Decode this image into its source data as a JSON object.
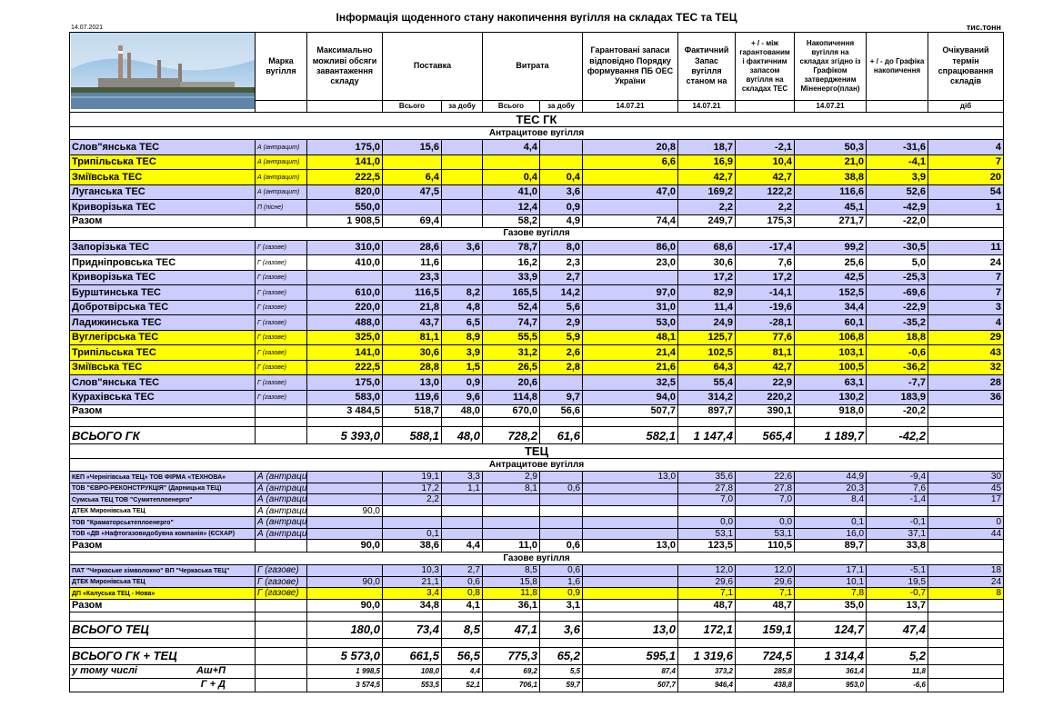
{
  "header": {
    "title": "Інформація щоденного стану накопичення вугілля на складах ТЕС та ТЕЦ",
    "date": "14.07.2021",
    "unit": "тис.тонн",
    "columns": [
      "Марка вугілля",
      "Максимально можливі обсяги завантаження складу",
      "Поставка",
      "Витрата",
      "Гарантовані запаси відповідно Порядку формування ПБ ОЕС України",
      "Фактичний Запас вугілля станом на",
      "+ / - між гарантованим і фактичним запасом вугілля на складах ТЕС",
      "Накопичення вугілля на складах згідно із Графіком затвердженим Міненерго(план)",
      "+ / - до Графіка накопичення",
      "Очікуваний термін спрацювання складів"
    ],
    "subheaders": [
      "Всього",
      "за добу",
      "Всього",
      "за добу",
      "14.07.21",
      "14.07.21",
      "14.07.21",
      "діб"
    ]
  },
  "table": {
    "sections": [
      {
        "title": "ТЕС ГК",
        "groups": [
          {
            "title": "Антрацитове вугілля",
            "rows": [
              {
                "name": "Слов\"янська ТЕС",
                "grade": "А (антрацит)",
                "fill": "#ccccff",
                "values": [
                  "175,0",
                  "15,6",
                  null,
                  "4,4",
                  null,
                  "20,8",
                  "18,7",
                  "-2,1",
                  "50,3",
                  "-31,6",
                  "4"
                ]
              },
              {
                "name": "Трипільська ТЕС",
                "grade": "А (антрацит)",
                "fill": "#ffff00",
                "values": [
                  "141,0",
                  null,
                  null,
                  null,
                  null,
                  "6,6",
                  "16,9",
                  "10,4",
                  "21,0",
                  "-4,1",
                  "7"
                ]
              },
              {
                "name": "Зміївська ТЕС",
                "grade": "А (антрацит)",
                "fill": "#ffff00",
                "values": [
                  "222,5",
                  "6,4",
                  null,
                  "0,4",
                  "0,4",
                  null,
                  "42,7",
                  "42,7",
                  "38,8",
                  "3,9",
                  "20"
                ]
              },
              {
                "name": "Луганська ТЕС",
                "grade": "А (антрацит)",
                "fill": "#ccccff",
                "values": [
                  "820,0",
                  "47,5",
                  null,
                  "41,0",
                  "3,6",
                  "47,0",
                  "169,2",
                  "122,2",
                  "116,6",
                  "52,6",
                  "54"
                ]
              },
              {
                "name": "Криворізька ТЕС",
                "grade": "П (пісне)",
                "fill": "#ccccff",
                "values": [
                  "550,0",
                  null,
                  null,
                  "12,4",
                  "0,9",
                  null,
                  "2,2",
                  "2,2",
                  "45,1",
                  "-42,9",
                  "1"
                ]
              }
            ],
            "total": {
              "name": "Разом",
              "values": [
                "1 908,5",
                "69,4",
                null,
                "58,2",
                "4,9",
                "74,4",
                "249,7",
                "175,3",
                "271,7",
                "-22,0",
                null
              ]
            }
          },
          {
            "title": "Газове вугілля",
            "rows": [
              {
                "name": "Запорізька ТЕС",
                "grade": "Г (газове)",
                "fill": "#ccccff",
                "values": [
                  "310,0",
                  "28,6",
                  "3,6",
                  "78,7",
                  "8,0",
                  "86,0",
                  "68,6",
                  "-17,4",
                  "99,2",
                  "-30,5",
                  "11"
                ]
              },
              {
                "name": "Придніпровська ТЕС",
                "grade": "Г (газове)",
                "values": [
                  "410,0",
                  "11,6",
                  null,
                  "16,2",
                  "2,3",
                  "23,0",
                  "30,6",
                  "7,6",
                  "25,6",
                  "5,0",
                  "24"
                ]
              },
              {
                "name": "Криворізька ТЕС",
                "grade": "Г (газове)",
                "fill": "#ccccff",
                "values": [
                  null,
                  "23,3",
                  null,
                  "33,9",
                  "2,7",
                  null,
                  "17,2",
                  "17,2",
                  "42,5",
                  "-25,3",
                  "7"
                ]
              },
              {
                "name": "Бурштинська ТЕС",
                "grade": "Г (газове)",
                "fill": "#ccccff",
                "values": [
                  "610,0",
                  "116,5",
                  "8,2",
                  "165,5",
                  "14,2",
                  "97,0",
                  "82,9",
                  "-14,1",
                  "152,5",
                  "-69,6",
                  "7"
                ]
              },
              {
                "name": "Добротвірська ТЕС",
                "grade": "Г (газове)",
                "fill": "#ccccff",
                "values": [
                  "220,0",
                  "21,8",
                  "4,8",
                  "52,4",
                  "5,6",
                  "31,0",
                  "11,4",
                  "-19,6",
                  "34,4",
                  "-22,9",
                  "3"
                ]
              },
              {
                "name": "Ладижинська ТЕС",
                "grade": "Г (газове)",
                "fill": "#ccccff",
                "values": [
                  "488,0",
                  "43,7",
                  "6,5",
                  "74,7",
                  "2,9",
                  "53,0",
                  "24,9",
                  "-28,1",
                  "60,1",
                  "-35,2",
                  "4"
                ]
              },
              {
                "name": "Вуглегірська ТЕС",
                "grade": "Г (газове)",
                "fill": "#ffff00",
                "values": [
                  "325,0",
                  "81,1",
                  "8,9",
                  "55,5",
                  "5,9",
                  "48,1",
                  "125,7",
                  "77,6",
                  "106,8",
                  "18,8",
                  "29"
                ]
              },
              {
                "name": "Трипільська ТЕС",
                "grade": "Г (газове)",
                "fill": "#ffff00",
                "values": [
                  "141,0",
                  "30,6",
                  "3,9",
                  "31,2",
                  "2,6",
                  "21,4",
                  "102,5",
                  "81,1",
                  "103,1",
                  "-0,6",
                  "43"
                ]
              },
              {
                "name": "Зміївська ТЕС",
                "grade": "Г (газове)",
                "fill": "#ffff00",
                "values": [
                  "222,5",
                  "28,8",
                  "1,5",
                  "26,5",
                  "2,8",
                  "21,6",
                  "64,3",
                  "42,7",
                  "100,5",
                  "-36,2",
                  "32"
                ]
              },
              {
                "name": "Слов\"янська ТЕС",
                "grade": "Г (газове)",
                "fill": "#ccccff",
                "values": [
                  "175,0",
                  "13,0",
                  "0,9",
                  "20,6",
                  null,
                  "32,5",
                  "55,4",
                  "22,9",
                  "63,1",
                  "-7,7",
                  "28"
                ]
              },
              {
                "name": "Курахівська ТЕС",
                "grade": "Г (газове)",
                "fill": "#ccccff",
                "values": [
                  "583,0",
                  "119,6",
                  "9,6",
                  "114,8",
                  "9,7",
                  "94,0",
                  "314,2",
                  "220,2",
                  "130,2",
                  "183,9",
                  "36"
                ]
              }
            ],
            "total": {
              "name": "Разом",
              "values": [
                "3 484,5",
                "518,7",
                "48,0",
                "670,0",
                "56,6",
                "507,7",
                "897,7",
                "390,1",
                "918,0",
                "-20,2",
                null
              ]
            }
          }
        ],
        "total": {
          "name": "ВСЬОГО ГК",
          "values": [
            "5 393,0",
            "588,1",
            "48,0",
            "728,2",
            "61,6",
            "582,1",
            "1 147,4",
            "565,4",
            "1 189,7",
            "-42,2",
            null
          ]
        }
      },
      {
        "title": "ТЕЦ",
        "groups": [
          {
            "title": "Антрацитове вугілля",
            "rows": [
              {
                "name": "КЕП «Чернігівська ТЕЦ» ТОВ ФІРМА «ТЕХНОВА»",
                "grade": "А (антрацит)",
                "fill": "#ccccff",
                "values": [
                  null,
                  "19,1",
                  "3,3",
                  "2,9",
                  null,
                  "13,0",
                  "35,6",
                  "22,6",
                  "44,9",
                  "-9,4",
                  "30"
                ]
              },
              {
                "name": "ТОВ \"ЄВРО-РЕКОНСТРУКЦІЯ\" (Дарницька ТЕЦ)",
                "grade": "А (антрацит)",
                "fill": "#ccccff",
                "values": [
                  null,
                  "17,2",
                  "1,1",
                  "8,1",
                  "0,6",
                  null,
                  "27,8",
                  "27,8",
                  "20,3",
                  "7,6",
                  "45"
                ]
              },
              {
                "name": "Сумська ТЕЦ ТОВ \"Сумитеплоенерго\"",
                "grade": "А (антрацит)",
                "fill": "#ccccff",
                "values": [
                  null,
                  "2,2",
                  null,
                  null,
                  null,
                  null,
                  "7,0",
                  "7,0",
                  "8,4",
                  "-1,4",
                  "17"
                ]
              },
              {
                "name": "ДТЕК Миронівська ТЕЦ",
                "grade": "А (антрацит)",
                "values": [
                  "90,0",
                  null,
                  null,
                  null,
                  null,
                  null,
                  null,
                  null,
                  null,
                  null,
                  null
                ]
              },
              {
                "name": "ТОВ \"Краматорськтеплоенерго\"",
                "grade": "А (антрацит)",
                "fill": "#ccccff",
                "values": [
                  null,
                  null,
                  null,
                  null,
                  null,
                  null,
                  "0,0",
                  "0,0",
                  "0,1",
                  "-0,1",
                  "0"
                ]
              },
              {
                "name": "ТОВ «ДВ «Нафтогазовидобувна компанія» (ЄСХАР)",
                "grade": "А (антрацит)",
                "fill": "#ccccff",
                "values": [
                  null,
                  "0,1",
                  null,
                  null,
                  null,
                  null,
                  "53,1",
                  "53,1",
                  "16,0",
                  "37,1",
                  "44"
                ]
              }
            ],
            "total": {
              "name": "Разом",
              "values": [
                "90,0",
                "38,6",
                "4,4",
                "11,0",
                "0,6",
                "13,0",
                "123,5",
                "110,5",
                "89,7",
                "33,8",
                null
              ]
            }
          },
          {
            "title": "Газове вугілля",
            "rows": [
              {
                "name": "ПАТ \"Черкаське хімволокно\" ВП \"Черкаська ТЕЦ\"",
                "grade": "Г (газове)",
                "fill": "#ccccff",
                "values": [
                  null,
                  "10,3",
                  "2,7",
                  "8,5",
                  "0,6",
                  null,
                  "12,0",
                  "12,0",
                  "17,1",
                  "-5,1",
                  "18"
                ]
              },
              {
                "name": "ДТЕК Миронівська ТЕЦ",
                "grade": "Г (газове)",
                "fill": "#ccccff",
                "values": [
                  "90,0",
                  "21,1",
                  "0,6",
                  "15,8",
                  "1,6",
                  null,
                  "29,6",
                  "29,6",
                  "10,1",
                  "19,5",
                  "24"
                ]
              },
              {
                "name": "ДП «Калуська ТЕЦ - Нова»",
                "grade": "Г (газове)",
                "fill": "#ffff00",
                "values": [
                  null,
                  "3,4",
                  "0,8",
                  "11,8",
                  "0,9",
                  null,
                  "7,1",
                  "7,1",
                  "7,8",
                  "-0,7",
                  "8"
                ]
              }
            ],
            "total": {
              "name": "Разом",
              "values": [
                "90,0",
                "34,8",
                "4,1",
                "36,1",
                "3,1",
                null,
                "48,7",
                "48,7",
                "35,0",
                "13,7",
                null
              ]
            }
          }
        ],
        "total": {
          "name": "ВСЬОГО ТЕЦ",
          "values": [
            "180,0",
            "73,4",
            "8,5",
            "47,1",
            "3,6",
            "13,0",
            "172,1",
            "159,1",
            "124,7",
            "47,4",
            null
          ]
        }
      }
    ],
    "summary": [
      {
        "name": "ВСЬОГО ГК + ТЕЦ",
        "values": [
          "5 573,0",
          "661,5",
          "56,5",
          "775,3",
          "65,2",
          "595,1",
          "1 319,6",
          "724,5",
          "1 314,4",
          "5,2",
          null
        ]
      },
      {
        "name": "у тому числі",
        "subgroup": "Аш+П",
        "values": [
          "1 998,5",
          "108,0",
          "4,4",
          "69,2",
          "5,5",
          "87,4",
          "373,2",
          "285,8",
          "361,4",
          "11,8",
          null
        ]
      },
      {
        "subgroup": "Г + Д",
        "values": [
          "3 574,5",
          "553,5",
          "52,1",
          "706,1",
          "59,7",
          "507,7",
          "946,4",
          "438,8",
          "953,0",
          "-6,6",
          null
        ]
      }
    ]
  }
}
